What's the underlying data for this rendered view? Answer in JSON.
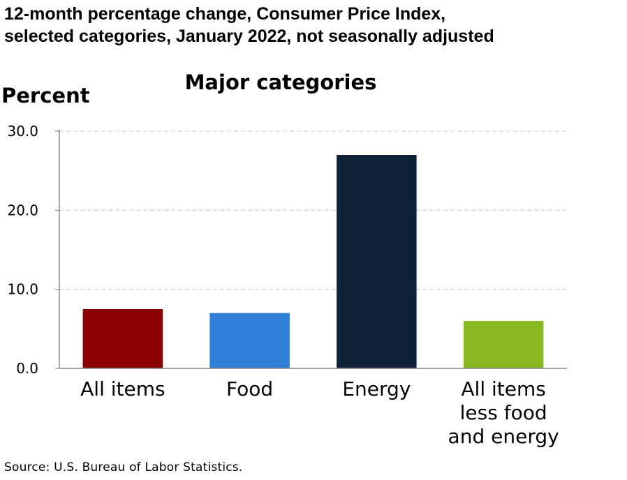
{
  "title_lines": [
    "12-month percentage change, Consumer Price Index,",
    "selected categories, January 2022, not seasonally adjusted"
  ],
  "source": "Source: U.S. Bureau of Labor Statistics.",
  "chart_data": {
    "type": "bar",
    "title": "Major categories",
    "ylabel": "Percent",
    "xlabel": "",
    "ylim": [
      0,
      30
    ],
    "yticks": [
      0,
      10,
      20,
      30
    ],
    "ytick_labels": [
      "0.0",
      "10.0",
      "20.0",
      "30.0"
    ],
    "grid": true,
    "categories": [
      [
        "All items"
      ],
      [
        "Food"
      ],
      [
        "Energy"
      ],
      [
        "All items",
        "less food",
        "and energy"
      ]
    ],
    "values": [
      7.5,
      7.0,
      27.0,
      6.0
    ],
    "colors": [
      "#8b0000",
      "#2f7ed8",
      "#102238",
      "#8aba23"
    ]
  }
}
